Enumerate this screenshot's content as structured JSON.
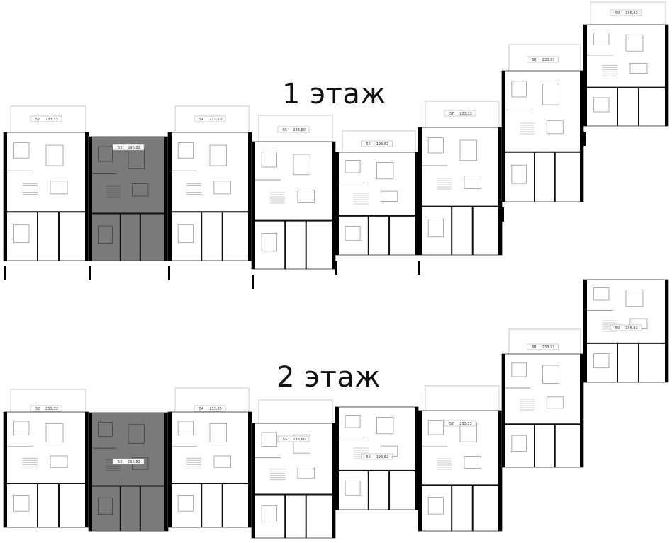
{
  "floors": [
    {
      "title": "1 этаж",
      "units": [
        {
          "number": "52",
          "area": "233,33",
          "highlighted": false
        },
        {
          "number": "53",
          "area": "196,82",
          "highlighted": true
        },
        {
          "number": "54",
          "area": "233,60",
          "highlighted": false
        },
        {
          "number": "55",
          "area": "233,60",
          "highlighted": false
        },
        {
          "number": "56",
          "area": "196,82",
          "highlighted": false
        },
        {
          "number": "57",
          "area": "233,33",
          "highlighted": false
        },
        {
          "number": "58",
          "area": "233,33",
          "highlighted": false
        },
        {
          "number": "59",
          "area": "196,82",
          "highlighted": false
        }
      ]
    },
    {
      "title": "2 этаж",
      "units": [
        {
          "number": "52",
          "area": "233,33",
          "highlighted": false
        },
        {
          "number": "53",
          "area": "196,82",
          "highlighted": true
        },
        {
          "number": "54",
          "area": "233,60",
          "highlighted": false
        },
        {
          "number": "55",
          "area": "233,60",
          "highlighted": false
        },
        {
          "number": "56",
          "area": "196,82",
          "highlighted": false
        },
        {
          "number": "57",
          "area": "233,33",
          "highlighted": false
        },
        {
          "number": "58",
          "area": "233,33",
          "highlighted": false
        },
        {
          "number": "59",
          "area": "196,82",
          "highlighted": false
        }
      ]
    }
  ],
  "colors": {
    "highlight": "#7a7a7a",
    "wall": "#000000",
    "line": "#9a9a9a"
  }
}
